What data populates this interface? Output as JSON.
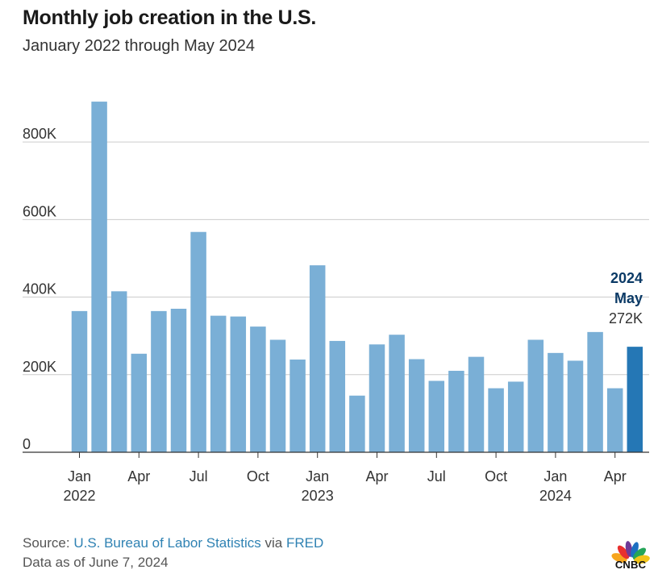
{
  "header": {
    "title": "Monthly job creation in the U.S.",
    "subtitle": "January 2022 through May 2024"
  },
  "chart_data": {
    "type": "bar",
    "title": "Monthly job creation in the U.S.",
    "subtitle": "January 2022 through May 2024",
    "xlabel": "",
    "ylabel": "",
    "ylim": [
      0,
      900000
    ],
    "y_ticks": [
      0,
      200000,
      400000,
      600000,
      800000
    ],
    "y_tick_labels": [
      "0",
      "200K",
      "400K",
      "600K",
      "800K"
    ],
    "categories": [
      "Jan 2022",
      "Feb 2022",
      "Mar 2022",
      "Apr 2022",
      "May 2022",
      "Jun 2022",
      "Jul 2022",
      "Aug 2022",
      "Sep 2022",
      "Oct 2022",
      "Nov 2022",
      "Dec 2022",
      "Jan 2023",
      "Feb 2023",
      "Mar 2023",
      "Apr 2023",
      "May 2023",
      "Jun 2023",
      "Jul 2023",
      "Aug 2023",
      "Sep 2023",
      "Oct 2023",
      "Nov 2023",
      "Dec 2023",
      "Jan 2024",
      "Feb 2024",
      "Mar 2024",
      "Apr 2024",
      "May 2024"
    ],
    "values": [
      364000,
      904000,
      415000,
      254000,
      364000,
      370000,
      568000,
      352000,
      350000,
      324000,
      290000,
      239000,
      482000,
      287000,
      146000,
      278000,
      303000,
      240000,
      184000,
      210000,
      246000,
      165000,
      182000,
      290000,
      256000,
      236000,
      310000,
      165000,
      272000
    ],
    "x_tick_labels": [
      {
        "index": 0,
        "month": "Jan",
        "year": "2022"
      },
      {
        "index": 3,
        "month": "Apr",
        "year": ""
      },
      {
        "index": 6,
        "month": "Jul",
        "year": ""
      },
      {
        "index": 9,
        "month": "Oct",
        "year": ""
      },
      {
        "index": 12,
        "month": "Jan",
        "year": "2023"
      },
      {
        "index": 15,
        "month": "Apr",
        "year": ""
      },
      {
        "index": 18,
        "month": "Jul",
        "year": ""
      },
      {
        "index": 21,
        "month": "Oct",
        "year": ""
      },
      {
        "index": 24,
        "month": "Jan",
        "year": "2024"
      },
      {
        "index": 27,
        "month": "Apr",
        "year": ""
      }
    ],
    "annotation": {
      "index": 28,
      "year": "2024",
      "month": "May",
      "value_label": "272K"
    },
    "colors": {
      "bar": "#7aafd6",
      "highlight": "#2577b5",
      "annotation_title": "#0b3a66",
      "grid": "#cccccc",
      "axis": "#333333"
    },
    "grid": true
  },
  "footer": {
    "source_prefix": "Source: ",
    "source_link1": "U.S. Bureau of Labor Statistics",
    "source_via": " via ",
    "source_link2": "FRED",
    "as_of": "Data as of June 7, 2024"
  },
  "brand": {
    "logo_text": "CNBC",
    "logo_icon": "peacock-icon"
  }
}
